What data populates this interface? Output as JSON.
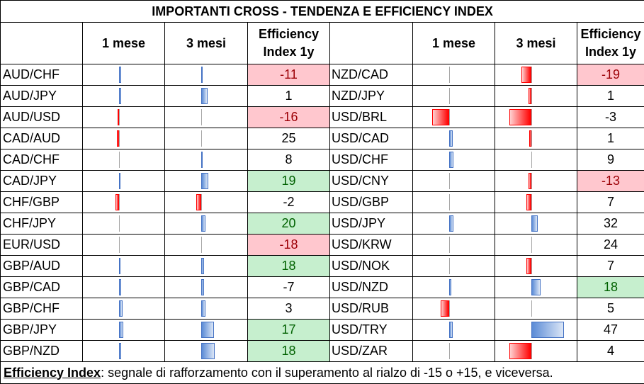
{
  "title": "IMPORTANTI CROSS - TENDENZA E EFFICIENCY INDEX",
  "headers": {
    "col1": "1 mese",
    "col2": "3 mesi",
    "eff_line1": "Efficiency",
    "eff_line2": "Index 1y"
  },
  "colors": {
    "positive_bar": "#4472c4",
    "negative_bar": "#ff0000",
    "positive_fill": "#c6efce",
    "negative_fill": "#ffc7ce"
  },
  "left": [
    {
      "pair": "AUD/CHF",
      "m1": 0.05,
      "m3": 0.02,
      "eff": "-11",
      "style": "neg"
    },
    {
      "pair": "AUD/JPY",
      "m1": 0.06,
      "m3": 0.15,
      "eff": "1",
      "style": ""
    },
    {
      "pair": "AUD/USD",
      "m1": -0.03,
      "m3": 0.0,
      "eff": "-16",
      "style": "neg"
    },
    {
      "pair": "CAD/AUD",
      "m1": -0.04,
      "m3": 0.0,
      "eff": "25",
      "style": ""
    },
    {
      "pair": "CAD/CHF",
      "m1": 0.0,
      "m3": 0.03,
      "eff": "8",
      "style": ""
    },
    {
      "pair": "CAD/JPY",
      "m1": 0.02,
      "m3": 0.16,
      "eff": "19",
      "style": "pos"
    },
    {
      "pair": "CHF/GBP",
      "m1": -0.07,
      "m3": -0.12,
      "eff": "-2",
      "style": ""
    },
    {
      "pair": "CHF/JPY",
      "m1": 0.0,
      "m3": 0.1,
      "eff": "20",
      "style": "pos"
    },
    {
      "pair": "EUR/USD",
      "m1": 0.0,
      "m3": 0.0,
      "eff": "-18",
      "style": "neg"
    },
    {
      "pair": "GBP/AUD",
      "m1": 0.02,
      "m3": 0.06,
      "eff": "18",
      "style": "pos"
    },
    {
      "pair": "GBP/CAD",
      "m1": 0.05,
      "m3": 0.06,
      "eff": "-7",
      "style": ""
    },
    {
      "pair": "GBP/CHF",
      "m1": 0.08,
      "m3": 0.1,
      "eff": "3",
      "style": ""
    },
    {
      "pair": "GBP/JPY",
      "m1": 0.1,
      "m3": 0.28,
      "eff": "17",
      "style": "pos"
    },
    {
      "pair": "GBP/NZD",
      "m1": 0.05,
      "m3": 0.3,
      "eff": "18",
      "style": "pos"
    }
  ],
  "right": [
    {
      "pair": "NZD/CAD",
      "m1": 0.0,
      "m3": -0.22,
      "eff": "-19",
      "style": "neg"
    },
    {
      "pair": "NZD/JPY",
      "m1": 0.0,
      "m3": -0.05,
      "eff": "1",
      "style": ""
    },
    {
      "pair": "USD/BRL",
      "m1": -0.38,
      "m3": -0.5,
      "eff": "-3",
      "style": ""
    },
    {
      "pair": "USD/CAD",
      "m1": 0.08,
      "m3": -0.04,
      "eff": "1",
      "style": ""
    },
    {
      "pair": "USD/CHF",
      "m1": 0.1,
      "m3": 0.0,
      "eff": "9",
      "style": ""
    },
    {
      "pair": "USD/CNY",
      "m1": 0.0,
      "m3": -0.06,
      "eff": "-13",
      "style": "neg"
    },
    {
      "pair": "USD/GBP",
      "m1": 0.0,
      "m3": -0.1,
      "eff": "7",
      "style": ""
    },
    {
      "pair": "USD/JPY",
      "m1": 0.1,
      "m3": 0.15,
      "eff": "32",
      "style": ""
    },
    {
      "pair": "USD/KRW",
      "m1": 0.0,
      "m3": 0.0,
      "eff": "24",
      "style": ""
    },
    {
      "pair": "USD/NOK",
      "m1": 0.0,
      "m3": -0.1,
      "eff": "7",
      "style": ""
    },
    {
      "pair": "USD/NZD",
      "m1": 0.06,
      "m3": 0.22,
      "eff": "18",
      "style": "pos"
    },
    {
      "pair": "USD/RUB",
      "m1": -0.18,
      "m3": 0.0,
      "eff": "5",
      "style": ""
    },
    {
      "pair": "USD/TRY",
      "m1": 0.08,
      "m3": 0.75,
      "eff": "47",
      "style": ""
    },
    {
      "pair": "USD/ZAR",
      "m1": 0.0,
      "m3": -0.5,
      "eff": "4",
      "style": ""
    }
  ],
  "footer": {
    "label": "Efficiency Index",
    "text": ": segnale di rafforzamento con il superamento al rialzo di -15 o +15, e viceversa."
  }
}
